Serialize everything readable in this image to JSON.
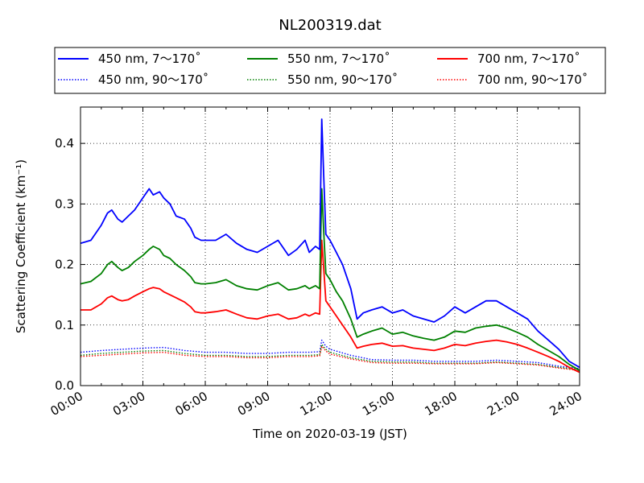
{
  "chart_data": {
    "type": "line",
    "title": "NL200319.dat",
    "xlabel": "Time on 2020-03-19 (JST)",
    "ylabel": "Scattering Coefficient (km⁻¹)",
    "xlim": [
      0,
      24
    ],
    "ylim": [
      0,
      0.46
    ],
    "grid": true,
    "legend_position": "top",
    "x_ticks": [
      {
        "value": 0,
        "label": "00:00"
      },
      {
        "value": 3,
        "label": "03:00"
      },
      {
        "value": 6,
        "label": "06:00"
      },
      {
        "value": 9,
        "label": "09:00"
      },
      {
        "value": 12,
        "label": "12:00"
      },
      {
        "value": 15,
        "label": "15:00"
      },
      {
        "value": 18,
        "label": "18:00"
      },
      {
        "value": 21,
        "label": "21:00"
      },
      {
        "value": 24,
        "label": "24:00"
      }
    ],
    "y_ticks": [
      {
        "value": 0.0,
        "label": "0.0"
      },
      {
        "value": 0.1,
        "label": "0.1"
      },
      {
        "value": 0.2,
        "label": "0.2"
      },
      {
        "value": 0.3,
        "label": "0.3"
      },
      {
        "value": 0.4,
        "label": "0.4"
      }
    ],
    "series": [
      {
        "name": "450 nm, 7～170˚",
        "color": "#0000ff",
        "style": "solid",
        "x": [
          0,
          0.5,
          1.0,
          1.3,
          1.5,
          1.8,
          2.0,
          2.3,
          2.6,
          3.0,
          3.3,
          3.5,
          3.8,
          4.0,
          4.3,
          4.6,
          5.0,
          5.3,
          5.5,
          5.8,
          6.0,
          6.5,
          7.0,
          7.5,
          8.0,
          8.5,
          9.0,
          9.5,
          10.0,
          10.4,
          10.8,
          11.0,
          11.3,
          11.5,
          11.6,
          11.7,
          11.8,
          12.0,
          12.3,
          12.6,
          13.0,
          13.3,
          13.6,
          14.0,
          14.5,
          15.0,
          15.5,
          16.0,
          16.5,
          17.0,
          17.5,
          18.0,
          18.5,
          19.0,
          19.5,
          20.0,
          20.5,
          21.0,
          21.5,
          22.0,
          22.5,
          23.0,
          23.5,
          24.0
        ],
        "y": [
          0.235,
          0.24,
          0.265,
          0.285,
          0.29,
          0.275,
          0.27,
          0.28,
          0.29,
          0.31,
          0.325,
          0.315,
          0.32,
          0.31,
          0.3,
          0.28,
          0.275,
          0.26,
          0.245,
          0.24,
          0.24,
          0.24,
          0.25,
          0.235,
          0.225,
          0.22,
          0.23,
          0.24,
          0.215,
          0.225,
          0.24,
          0.22,
          0.23,
          0.225,
          0.44,
          0.34,
          0.25,
          0.24,
          0.22,
          0.2,
          0.16,
          0.11,
          0.12,
          0.125,
          0.13,
          0.12,
          0.125,
          0.115,
          0.11,
          0.105,
          0.115,
          0.13,
          0.12,
          0.13,
          0.14,
          0.14,
          0.13,
          0.12,
          0.11,
          0.09,
          0.075,
          0.06,
          0.04,
          0.03
        ]
      },
      {
        "name": "450 nm, 90～170˚",
        "color": "#0000ff",
        "style": "dotted",
        "x": [
          0,
          1,
          2,
          3,
          4,
          5,
          6,
          7,
          8,
          9,
          10,
          11,
          11.5,
          11.6,
          11.8,
          12,
          13,
          14,
          15,
          16,
          17,
          18,
          19,
          20,
          21,
          22,
          23,
          24
        ],
        "y": [
          0.055,
          0.058,
          0.06,
          0.062,
          0.063,
          0.058,
          0.055,
          0.055,
          0.053,
          0.053,
          0.055,
          0.055,
          0.056,
          0.075,
          0.065,
          0.06,
          0.05,
          0.043,
          0.042,
          0.042,
          0.04,
          0.04,
          0.04,
          0.042,
          0.04,
          0.038,
          0.032,
          0.028
        ]
      },
      {
        "name": "550 nm, 7～170˚",
        "color": "#008000",
        "style": "solid",
        "x": [
          0,
          0.5,
          1.0,
          1.3,
          1.5,
          1.8,
          2.0,
          2.3,
          2.6,
          3.0,
          3.3,
          3.5,
          3.8,
          4.0,
          4.3,
          4.6,
          5.0,
          5.3,
          5.5,
          5.8,
          6.0,
          6.5,
          7.0,
          7.5,
          8.0,
          8.5,
          9.0,
          9.5,
          10.0,
          10.4,
          10.8,
          11.0,
          11.3,
          11.5,
          11.6,
          11.7,
          11.8,
          12.0,
          12.3,
          12.6,
          13.0,
          13.3,
          13.6,
          14.0,
          14.5,
          15.0,
          15.5,
          16.0,
          16.5,
          17.0,
          17.5,
          18.0,
          18.5,
          19.0,
          19.5,
          20.0,
          20.5,
          21.0,
          21.5,
          22.0,
          22.5,
          23.0,
          23.5,
          24.0
        ],
        "y": [
          0.168,
          0.172,
          0.185,
          0.2,
          0.205,
          0.195,
          0.19,
          0.195,
          0.205,
          0.215,
          0.225,
          0.23,
          0.225,
          0.215,
          0.21,
          0.2,
          0.19,
          0.18,
          0.17,
          0.168,
          0.168,
          0.17,
          0.175,
          0.165,
          0.16,
          0.158,
          0.165,
          0.17,
          0.158,
          0.16,
          0.165,
          0.16,
          0.165,
          0.16,
          0.325,
          0.25,
          0.185,
          0.175,
          0.155,
          0.14,
          0.11,
          0.08,
          0.085,
          0.09,
          0.095,
          0.085,
          0.088,
          0.082,
          0.078,
          0.075,
          0.08,
          0.09,
          0.088,
          0.095,
          0.098,
          0.1,
          0.095,
          0.088,
          0.08,
          0.068,
          0.058,
          0.048,
          0.035,
          0.025
        ]
      },
      {
        "name": "550 nm, 90～170˚",
        "color": "#008000",
        "style": "dotted",
        "x": [
          0,
          1,
          2,
          3,
          4,
          5,
          6,
          7,
          8,
          9,
          10,
          11,
          11.5,
          11.6,
          11.8,
          12,
          13,
          14,
          15,
          16,
          17,
          18,
          19,
          20,
          21,
          22,
          23,
          24
        ],
        "y": [
          0.05,
          0.053,
          0.055,
          0.057,
          0.058,
          0.053,
          0.05,
          0.05,
          0.048,
          0.048,
          0.05,
          0.05,
          0.051,
          0.068,
          0.06,
          0.055,
          0.046,
          0.04,
          0.039,
          0.039,
          0.037,
          0.037,
          0.037,
          0.039,
          0.037,
          0.035,
          0.03,
          0.026
        ]
      },
      {
        "name": "700 nm, 7～170˚",
        "color": "#ff0000",
        "style": "solid",
        "x": [
          0,
          0.5,
          1.0,
          1.3,
          1.5,
          1.8,
          2.0,
          2.3,
          2.6,
          3.0,
          3.3,
          3.5,
          3.8,
          4.0,
          4.3,
          4.6,
          5.0,
          5.3,
          5.5,
          5.8,
          6.0,
          6.5,
          7.0,
          7.5,
          8.0,
          8.5,
          9.0,
          9.5,
          10.0,
          10.4,
          10.8,
          11.0,
          11.3,
          11.5,
          11.6,
          11.7,
          11.8,
          12.0,
          12.3,
          12.6,
          13.0,
          13.3,
          13.6,
          14.0,
          14.5,
          15.0,
          15.5,
          16.0,
          16.5,
          17.0,
          17.5,
          18.0,
          18.5,
          19.0,
          19.5,
          20.0,
          20.5,
          21.0,
          21.5,
          22.0,
          22.5,
          23.0,
          23.5,
          24.0
        ],
        "y": [
          0.125,
          0.125,
          0.135,
          0.145,
          0.148,
          0.142,
          0.14,
          0.142,
          0.148,
          0.155,
          0.16,
          0.162,
          0.16,
          0.155,
          0.15,
          0.145,
          0.138,
          0.13,
          0.122,
          0.12,
          0.12,
          0.122,
          0.125,
          0.118,
          0.112,
          0.11,
          0.115,
          0.118,
          0.11,
          0.112,
          0.118,
          0.115,
          0.12,
          0.118,
          0.24,
          0.19,
          0.14,
          0.13,
          0.115,
          0.1,
          0.08,
          0.062,
          0.065,
          0.068,
          0.07,
          0.065,
          0.066,
          0.062,
          0.06,
          0.058,
          0.062,
          0.068,
          0.066,
          0.07,
          0.073,
          0.075,
          0.072,
          0.068,
          0.062,
          0.055,
          0.048,
          0.04,
          0.03,
          0.022
        ]
      },
      {
        "name": "700 nm, 90～170˚",
        "color": "#ff0000",
        "style": "dotted",
        "x": [
          0,
          1,
          2,
          3,
          4,
          5,
          6,
          7,
          8,
          9,
          10,
          11,
          11.5,
          11.6,
          11.8,
          12,
          13,
          14,
          15,
          16,
          17,
          18,
          19,
          20,
          21,
          22,
          23,
          24
        ],
        "y": [
          0.048,
          0.05,
          0.052,
          0.054,
          0.055,
          0.05,
          0.048,
          0.048,
          0.046,
          0.046,
          0.048,
          0.048,
          0.049,
          0.065,
          0.057,
          0.052,
          0.044,
          0.038,
          0.037,
          0.037,
          0.036,
          0.036,
          0.036,
          0.038,
          0.036,
          0.034,
          0.029,
          0.025
        ]
      }
    ]
  }
}
